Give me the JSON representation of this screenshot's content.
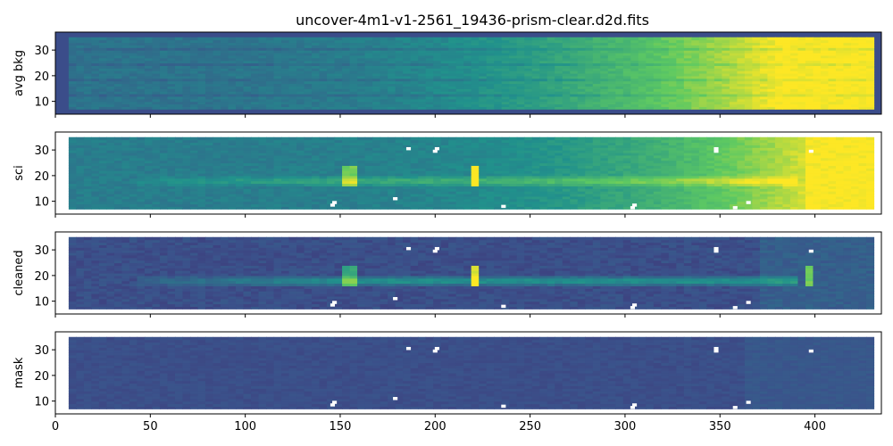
{
  "figure": {
    "title": "uncover-4m1-v1-2561_19436-prism-clear.d2d.fits"
  },
  "chart_data": {
    "type": "heatmap",
    "xlim": [
      0,
      435
    ],
    "ylim": [
      5,
      37
    ],
    "x_ticks": [
      0,
      50,
      100,
      150,
      200,
      250,
      300,
      350,
      400
    ],
    "x_tick_labels": [
      "0",
      "50",
      "100",
      "150",
      "200",
      "250",
      "300",
      "350",
      "400"
    ],
    "y_ticks": [
      10,
      20,
      30
    ],
    "y_tick_labels": [
      "10",
      "20",
      "30"
    ],
    "colormap": [
      "#440154",
      "#3b528b",
      "#21918c",
      "#5ec962",
      "#fde725"
    ],
    "panel_bg": "#3b4d8a",
    "data_extent": {
      "x": [
        7,
        428
      ],
      "y": [
        7,
        35
      ]
    },
    "trace_y": 18,
    "emission_lines": [
      {
        "x": 155,
        "strength": 1.0
      },
      {
        "x": 221,
        "strength": 1.0
      },
      {
        "x": 397,
        "strength": 0.7
      }
    ],
    "masked_pixels": [
      {
        "x": 186,
        "y": 30.5
      },
      {
        "x": 200,
        "y": 29.5
      },
      {
        "x": 201,
        "y": 30.5
      },
      {
        "x": 179,
        "y": 11
      },
      {
        "x": 146,
        "y": 8.5
      },
      {
        "x": 147,
        "y": 9.5
      },
      {
        "x": 236,
        "y": 8
      },
      {
        "x": 304,
        "y": 7.5
      },
      {
        "x": 305,
        "y": 8.5
      },
      {
        "x": 348,
        "y": 29.5
      },
      {
        "x": 348,
        "y": 30.5
      },
      {
        "x": 358,
        "y": 7.5
      },
      {
        "x": 365,
        "y": 9.5
      },
      {
        "x": 398,
        "y": 29.5
      }
    ],
    "panels": [
      {
        "ylabel": "avg bkg",
        "content": "background"
      },
      {
        "ylabel": "sci",
        "content": "science"
      },
      {
        "ylabel": "cleaned",
        "content": "cleaned"
      },
      {
        "ylabel": "mask",
        "content": "mask"
      }
    ]
  }
}
